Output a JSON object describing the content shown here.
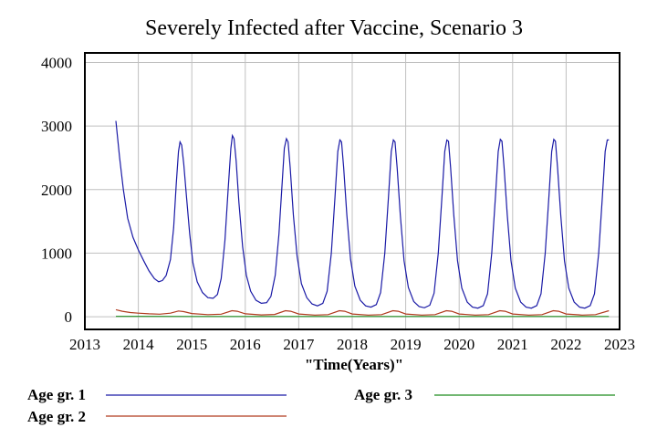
{
  "chart_data": {
    "type": "line",
    "title": "Severely Infected after Vaccine, Scenario 3",
    "xlabel": "\"Time(Years)\"",
    "ylabel": "",
    "xlim": [
      2013,
      2023
    ],
    "ylim": [
      -200,
      4150
    ],
    "x_ticks": [
      "2013",
      "2014",
      "2015",
      "2016",
      "2017",
      "2018",
      "2019",
      "2020",
      "2021",
      "2022",
      "2023"
    ],
    "y_ticks": [
      "4000",
      "3000",
      "2000",
      "1000",
      "0"
    ],
    "y_tick_values": [
      4000,
      3000,
      2000,
      1000,
      0
    ],
    "grid": true,
    "legend_position": "bottom",
    "series": [
      {
        "name": "Age gr. 1",
        "color": "#1a1aa6",
        "points": [
          [
            2013.58,
            3080
          ],
          [
            2013.65,
            2500
          ],
          [
            2013.72,
            2000
          ],
          [
            2013.8,
            1550
          ],
          [
            2013.9,
            1250
          ],
          [
            2014.0,
            1050
          ],
          [
            2014.1,
            880
          ],
          [
            2014.2,
            720
          ],
          [
            2014.3,
            600
          ],
          [
            2014.38,
            550
          ],
          [
            2014.45,
            570
          ],
          [
            2014.52,
            650
          ],
          [
            2014.6,
            900
          ],
          [
            2014.66,
            1400
          ],
          [
            2014.71,
            2100
          ],
          [
            2014.75,
            2600
          ],
          [
            2014.78,
            2750
          ],
          [
            2014.81,
            2700
          ],
          [
            2014.85,
            2400
          ],
          [
            2014.9,
            1900
          ],
          [
            2014.96,
            1300
          ],
          [
            2015.02,
            850
          ],
          [
            2015.1,
            550
          ],
          [
            2015.2,
            380
          ],
          [
            2015.3,
            300
          ],
          [
            2015.4,
            290
          ],
          [
            2015.48,
            350
          ],
          [
            2015.55,
            600
          ],
          [
            2015.62,
            1200
          ],
          [
            2015.68,
            2000
          ],
          [
            2015.73,
            2650
          ],
          [
            2015.76,
            2850
          ],
          [
            2015.79,
            2800
          ],
          [
            2015.83,
            2450
          ],
          [
            2015.88,
            1800
          ],
          [
            2015.95,
            1100
          ],
          [
            2016.02,
            650
          ],
          [
            2016.1,
            400
          ],
          [
            2016.2,
            260
          ],
          [
            2016.3,
            210
          ],
          [
            2016.4,
            220
          ],
          [
            2016.48,
            320
          ],
          [
            2016.56,
            650
          ],
          [
            2016.63,
            1300
          ],
          [
            2016.69,
            2100
          ],
          [
            2016.73,
            2650
          ],
          [
            2016.77,
            2800
          ],
          [
            2016.8,
            2750
          ],
          [
            2016.84,
            2350
          ],
          [
            2016.9,
            1600
          ],
          [
            2016.97,
            950
          ],
          [
            2017.05,
            520
          ],
          [
            2017.15,
            300
          ],
          [
            2017.25,
            200
          ],
          [
            2017.35,
            170
          ],
          [
            2017.45,
            210
          ],
          [
            2017.53,
            400
          ],
          [
            2017.61,
            1000
          ],
          [
            2017.68,
            1900
          ],
          [
            2017.73,
            2600
          ],
          [
            2017.77,
            2780
          ],
          [
            2017.8,
            2750
          ],
          [
            2017.84,
            2350
          ],
          [
            2017.9,
            1600
          ],
          [
            2017.97,
            900
          ],
          [
            2018.05,
            480
          ],
          [
            2018.15,
            260
          ],
          [
            2018.25,
            170
          ],
          [
            2018.35,
            150
          ],
          [
            2018.45,
            190
          ],
          [
            2018.53,
            380
          ],
          [
            2018.61,
            1000
          ],
          [
            2018.68,
            1900
          ],
          [
            2018.73,
            2600
          ],
          [
            2018.77,
            2780
          ],
          [
            2018.8,
            2750
          ],
          [
            2018.84,
            2350
          ],
          [
            2018.9,
            1600
          ],
          [
            2018.97,
            880
          ],
          [
            2019.05,
            460
          ],
          [
            2019.15,
            240
          ],
          [
            2019.25,
            160
          ],
          [
            2019.35,
            140
          ],
          [
            2019.45,
            180
          ],
          [
            2019.53,
            370
          ],
          [
            2019.61,
            1000
          ],
          [
            2019.68,
            1900
          ],
          [
            2019.73,
            2600
          ],
          [
            2019.77,
            2780
          ],
          [
            2019.8,
            2760
          ],
          [
            2019.84,
            2350
          ],
          [
            2019.9,
            1600
          ],
          [
            2019.97,
            880
          ],
          [
            2020.05,
            450
          ],
          [
            2020.15,
            230
          ],
          [
            2020.25,
            150
          ],
          [
            2020.35,
            135
          ],
          [
            2020.45,
            175
          ],
          [
            2020.53,
            360
          ],
          [
            2020.61,
            1000
          ],
          [
            2020.68,
            1900
          ],
          [
            2020.73,
            2600
          ],
          [
            2020.77,
            2790
          ],
          [
            2020.8,
            2760
          ],
          [
            2020.84,
            2350
          ],
          [
            2020.9,
            1600
          ],
          [
            2020.97,
            880
          ],
          [
            2021.05,
            450
          ],
          [
            2021.15,
            230
          ],
          [
            2021.25,
            150
          ],
          [
            2021.35,
            135
          ],
          [
            2021.45,
            175
          ],
          [
            2021.53,
            360
          ],
          [
            2021.61,
            1000
          ],
          [
            2021.68,
            1900
          ],
          [
            2021.73,
            2600
          ],
          [
            2021.77,
            2790
          ],
          [
            2021.8,
            2760
          ],
          [
            2021.84,
            2350
          ],
          [
            2021.9,
            1600
          ],
          [
            2021.97,
            880
          ],
          [
            2022.05,
            450
          ],
          [
            2022.15,
            230
          ],
          [
            2022.25,
            150
          ],
          [
            2022.35,
            135
          ],
          [
            2022.45,
            175
          ],
          [
            2022.53,
            360
          ],
          [
            2022.61,
            1000
          ],
          [
            2022.68,
            1900
          ],
          [
            2022.73,
            2600
          ],
          [
            2022.77,
            2780
          ],
          [
            2022.8,
            2780
          ]
        ]
      },
      {
        "name": "Age gr. 2",
        "color": "#b03a1e",
        "points": [
          [
            2013.58,
            110
          ],
          [
            2013.7,
            85
          ],
          [
            2013.85,
            65
          ],
          [
            2014.0,
            55
          ],
          [
            2014.2,
            45
          ],
          [
            2014.4,
            40
          ],
          [
            2014.6,
            55
          ],
          [
            2014.75,
            90
          ],
          [
            2014.85,
            80
          ],
          [
            2015.0,
            50
          ],
          [
            2015.3,
            32
          ],
          [
            2015.55,
            40
          ],
          [
            2015.75,
            95
          ],
          [
            2015.85,
            85
          ],
          [
            2016.0,
            45
          ],
          [
            2016.3,
            28
          ],
          [
            2016.55,
            35
          ],
          [
            2016.75,
            95
          ],
          [
            2016.85,
            85
          ],
          [
            2017.0,
            42
          ],
          [
            2017.3,
            26
          ],
          [
            2017.55,
            33
          ],
          [
            2017.76,
            95
          ],
          [
            2017.86,
            85
          ],
          [
            2018.0,
            42
          ],
          [
            2018.3,
            25
          ],
          [
            2018.55,
            32
          ],
          [
            2018.76,
            95
          ],
          [
            2018.86,
            85
          ],
          [
            2019.0,
            42
          ],
          [
            2019.3,
            25
          ],
          [
            2019.55,
            32
          ],
          [
            2019.76,
            95
          ],
          [
            2019.86,
            85
          ],
          [
            2020.0,
            42
          ],
          [
            2020.3,
            25
          ],
          [
            2020.55,
            32
          ],
          [
            2020.76,
            95
          ],
          [
            2020.86,
            85
          ],
          [
            2021.0,
            42
          ],
          [
            2021.3,
            25
          ],
          [
            2021.55,
            32
          ],
          [
            2021.76,
            95
          ],
          [
            2021.86,
            85
          ],
          [
            2022.0,
            42
          ],
          [
            2022.3,
            25
          ],
          [
            2022.55,
            32
          ],
          [
            2022.8,
            95
          ]
        ]
      },
      {
        "name": "Age gr. 3",
        "color": "#1e8c1e",
        "points": [
          [
            2013.58,
            6
          ],
          [
            2014.0,
            5
          ],
          [
            2015.0,
            4
          ],
          [
            2016.0,
            4
          ],
          [
            2017.0,
            4
          ],
          [
            2018.0,
            4
          ],
          [
            2019.0,
            4
          ],
          [
            2020.0,
            4
          ],
          [
            2021.0,
            4
          ],
          [
            2022.0,
            4
          ],
          [
            2022.8,
            4
          ]
        ]
      }
    ]
  }
}
